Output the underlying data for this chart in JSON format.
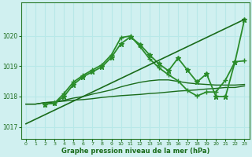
{
  "background_color": "#d0f0f0",
  "grid_color": "#b8e8e8",
  "line_colors": [
    "#1a6b1a",
    "#1a6b1a",
    "#2a8c2a",
    "#1a6b1a",
    "#2a8c2a"
  ],
  "xlabel": "Graphe pression niveau de la mer (hPa)",
  "ylim": [
    1016.6,
    1021.1
  ],
  "xlim": [
    -0.5,
    23.5
  ],
  "yticks": [
    1017,
    1018,
    1019,
    1020
  ],
  "xticks": [
    0,
    1,
    2,
    3,
    4,
    5,
    6,
    7,
    8,
    9,
    10,
    11,
    12,
    13,
    14,
    15,
    16,
    17,
    18,
    19,
    20,
    21,
    22,
    23
  ],
  "series": [
    {
      "x": [
        0,
        1,
        2,
        3,
        4,
        5,
        6,
        7,
        8,
        9,
        10,
        11,
        12,
        13,
        14,
        15,
        16,
        17,
        18,
        19,
        20,
        21,
        22,
        23
      ],
      "y": [
        1017.75,
        1017.75,
        1017.8,
        1017.82,
        1017.85,
        1017.88,
        1017.9,
        1017.93,
        1017.97,
        1018.0,
        1018.03,
        1018.05,
        1018.07,
        1018.1,
        1018.12,
        1018.15,
        1018.18,
        1018.2,
        1018.22,
        1018.25,
        1018.27,
        1018.3,
        1018.3,
        1018.35
      ],
      "color": "#1a6b1a",
      "lw": 1.0,
      "marker": null,
      "linestyle": "-"
    },
    {
      "x": [
        0,
        1,
        2,
        3,
        4,
        5,
        6,
        7,
        8,
        9,
        10,
        11,
        12,
        13,
        14,
        15,
        16,
        17,
        18,
        19,
        20,
        21,
        22,
        23
      ],
      "y": [
        1017.75,
        1017.75,
        1017.8,
        1017.82,
        1017.88,
        1017.95,
        1018.0,
        1018.08,
        1018.15,
        1018.22,
        1018.32,
        1018.4,
        1018.47,
        1018.52,
        1018.55,
        1018.55,
        1018.5,
        1018.45,
        1018.42,
        1018.4,
        1018.38,
        1018.38,
        1018.38,
        1018.4
      ],
      "color": "#1a6b1a",
      "lw": 1.0,
      "marker": null,
      "linestyle": "-"
    },
    {
      "x": [
        2,
        3,
        4,
        5,
        6,
        7,
        8,
        9,
        10,
        11,
        12,
        13,
        14,
        15,
        16,
        17,
        18,
        19,
        20,
        21,
        22,
        23
      ],
      "y": [
        1017.75,
        1017.78,
        1018.0,
        1018.4,
        1018.65,
        1018.82,
        1018.98,
        1019.3,
        1019.75,
        1019.97,
        1019.72,
        1019.38,
        1019.08,
        1018.85,
        1019.27,
        1018.87,
        1018.48,
        1018.75,
        1018.0,
        1018.0,
        1019.15,
        1020.55
      ],
      "color": "#2a8c2a",
      "lw": 1.3,
      "marker": "*",
      "markersize": 5,
      "linestyle": "-"
    },
    {
      "x": [
        2,
        3,
        4,
        5,
        6,
        7,
        8,
        9,
        10,
        11,
        12,
        13,
        14,
        15,
        16,
        17,
        18,
        19,
        20,
        21,
        22,
        23
      ],
      "y": [
        1017.75,
        1017.78,
        1018.1,
        1018.48,
        1018.7,
        1018.88,
        1019.05,
        1019.38,
        1019.95,
        1020.0,
        1019.65,
        1019.25,
        1018.95,
        1018.72,
        1018.52,
        1018.2,
        1018.02,
        1018.15,
        1018.15,
        1018.55,
        1019.15,
        1019.18
      ],
      "color": "#2a8c2a",
      "lw": 1.3,
      "marker": "+",
      "markersize": 5,
      "linestyle": "-"
    },
    {
      "x": [
        0,
        23
      ],
      "y": [
        1017.1,
        1020.55
      ],
      "color": "#1a6b1a",
      "lw": 1.2,
      "marker": null,
      "linestyle": "-"
    }
  ]
}
